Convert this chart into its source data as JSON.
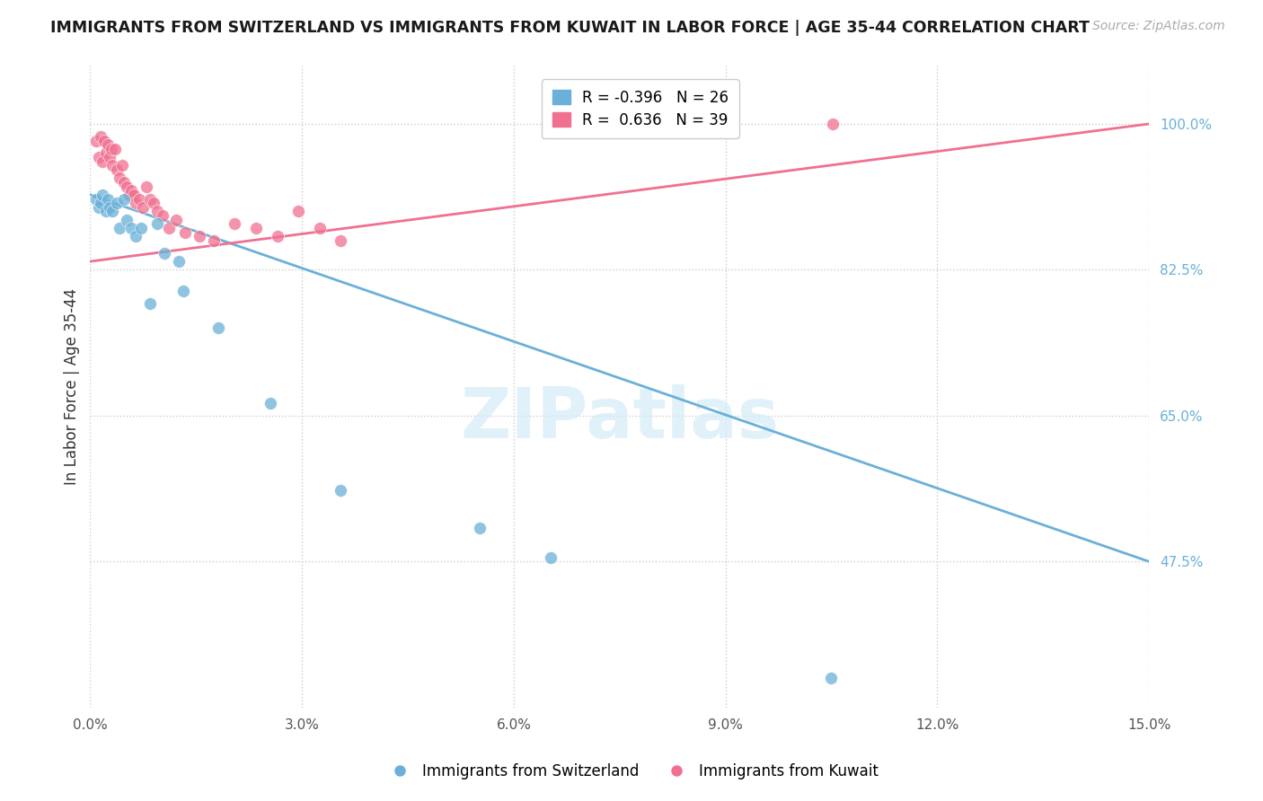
{
  "title": "IMMIGRANTS FROM SWITZERLAND VS IMMIGRANTS FROM KUWAIT IN LABOR FORCE | AGE 35-44 CORRELATION CHART",
  "source": "Source: ZipAtlas.com",
  "ylabel": "In Labor Force | Age 35-44",
  "xlim": [
    0.0,
    15.0
  ],
  "ylim": [
    30.0,
    107.0
  ],
  "yticks": [
    47.5,
    65.0,
    82.5,
    100.0
  ],
  "xticks": [
    0.0,
    3.0,
    6.0,
    9.0,
    12.0,
    15.0
  ],
  "xtick_labels": [
    "0.0%",
    "3.0%",
    "6.0%",
    "9.0%",
    "12.0%",
    "15.0%"
  ],
  "ytick_labels": [
    "47.5%",
    "65.0%",
    "82.5%",
    "100.0%"
  ],
  "blue_color": "#6ab0d8",
  "pink_color": "#f07090",
  "blue_R": -0.396,
  "blue_N": 26,
  "pink_R": 0.636,
  "pink_N": 39,
  "blue_scatter_x": [
    0.08,
    0.12,
    0.15,
    0.18,
    0.22,
    0.25,
    0.28,
    0.32,
    0.38,
    0.42,
    0.48,
    0.52,
    0.58,
    0.65,
    0.72,
    0.85,
    1.05,
    1.32,
    1.82,
    2.55,
    3.55,
    5.52,
    6.52,
    10.5,
    1.25,
    0.95
  ],
  "blue_scatter_y": [
    91.0,
    90.0,
    90.5,
    91.5,
    89.5,
    91.0,
    90.0,
    89.5,
    90.5,
    87.5,
    91.0,
    88.5,
    87.5,
    86.5,
    87.5,
    78.5,
    84.5,
    80.0,
    75.5,
    66.5,
    56.0,
    51.5,
    48.0,
    33.5,
    83.5,
    88.0
  ],
  "pink_scatter_x": [
    0.08,
    0.12,
    0.15,
    0.18,
    0.2,
    0.22,
    0.25,
    0.28,
    0.3,
    0.32,
    0.35,
    0.38,
    0.42,
    0.45,
    0.48,
    0.52,
    0.55,
    0.58,
    0.62,
    0.65,
    0.7,
    0.75,
    0.8,
    0.85,
    0.9,
    0.95,
    1.02,
    1.12,
    1.22,
    1.35,
    1.55,
    1.75,
    2.05,
    2.35,
    2.65,
    2.95,
    3.25,
    3.55,
    10.52
  ],
  "pink_scatter_y": [
    98.0,
    96.0,
    98.5,
    95.5,
    98.0,
    96.5,
    97.5,
    96.0,
    97.0,
    95.0,
    97.0,
    94.5,
    93.5,
    95.0,
    93.0,
    92.5,
    91.5,
    92.0,
    91.5,
    90.5,
    91.0,
    90.0,
    92.5,
    91.0,
    90.5,
    89.5,
    89.0,
    87.5,
    88.5,
    87.0,
    86.5,
    86.0,
    88.0,
    87.5,
    86.5,
    89.5,
    87.5,
    86.0,
    100.0
  ],
  "blue_line_x": [
    0.0,
    15.0
  ],
  "blue_line_y": [
    91.5,
    47.5
  ],
  "pink_line_x": [
    0.0,
    15.0
  ],
  "pink_line_y": [
    83.5,
    100.0
  ]
}
